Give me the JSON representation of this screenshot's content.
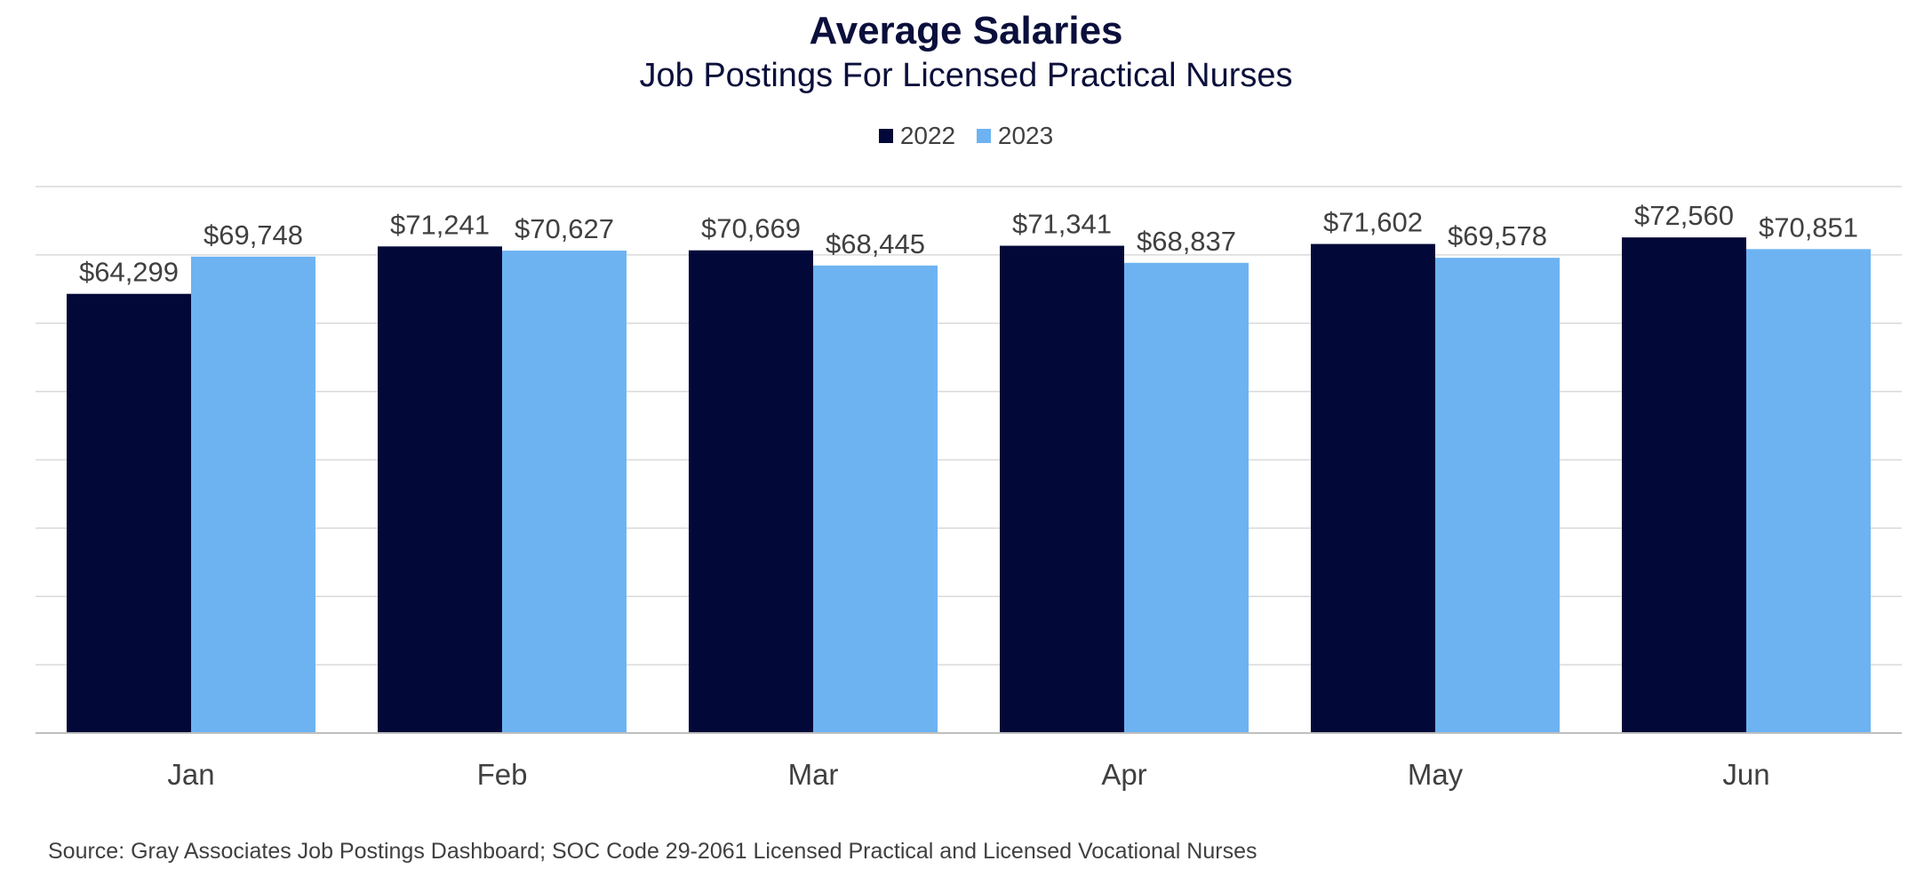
{
  "chart_data": {
    "type": "bar",
    "title": "Average Salaries",
    "subtitle": "Job Postings For Licensed Practical Nurses",
    "categories": [
      "Jan",
      "Feb",
      "Mar",
      "Apr",
      "May",
      "Jun"
    ],
    "series": [
      {
        "name": "2022",
        "color": "#020838",
        "values": [
          64299,
          71241,
          70669,
          71341,
          71602,
          72560
        ],
        "labels": [
          "$64,299",
          "$71,241",
          "$70,669",
          "$71,341",
          "$71,602",
          "$72,560"
        ]
      },
      {
        "name": "2023",
        "color": "#6db3f2",
        "values": [
          69748,
          70627,
          68445,
          68837,
          69578,
          70851
        ],
        "labels": [
          "$69,748",
          "$70,627",
          "$68,445",
          "$68,837",
          "$69,578",
          "$70,851"
        ]
      }
    ],
    "ylim": [
      0,
      80000
    ],
    "grid": true,
    "legend_position": "top-center",
    "source": "Source: Gray Associates Job Postings Dashboard; SOC Code 29-2061 Licensed Practical and Licensed Vocational Nurses"
  }
}
